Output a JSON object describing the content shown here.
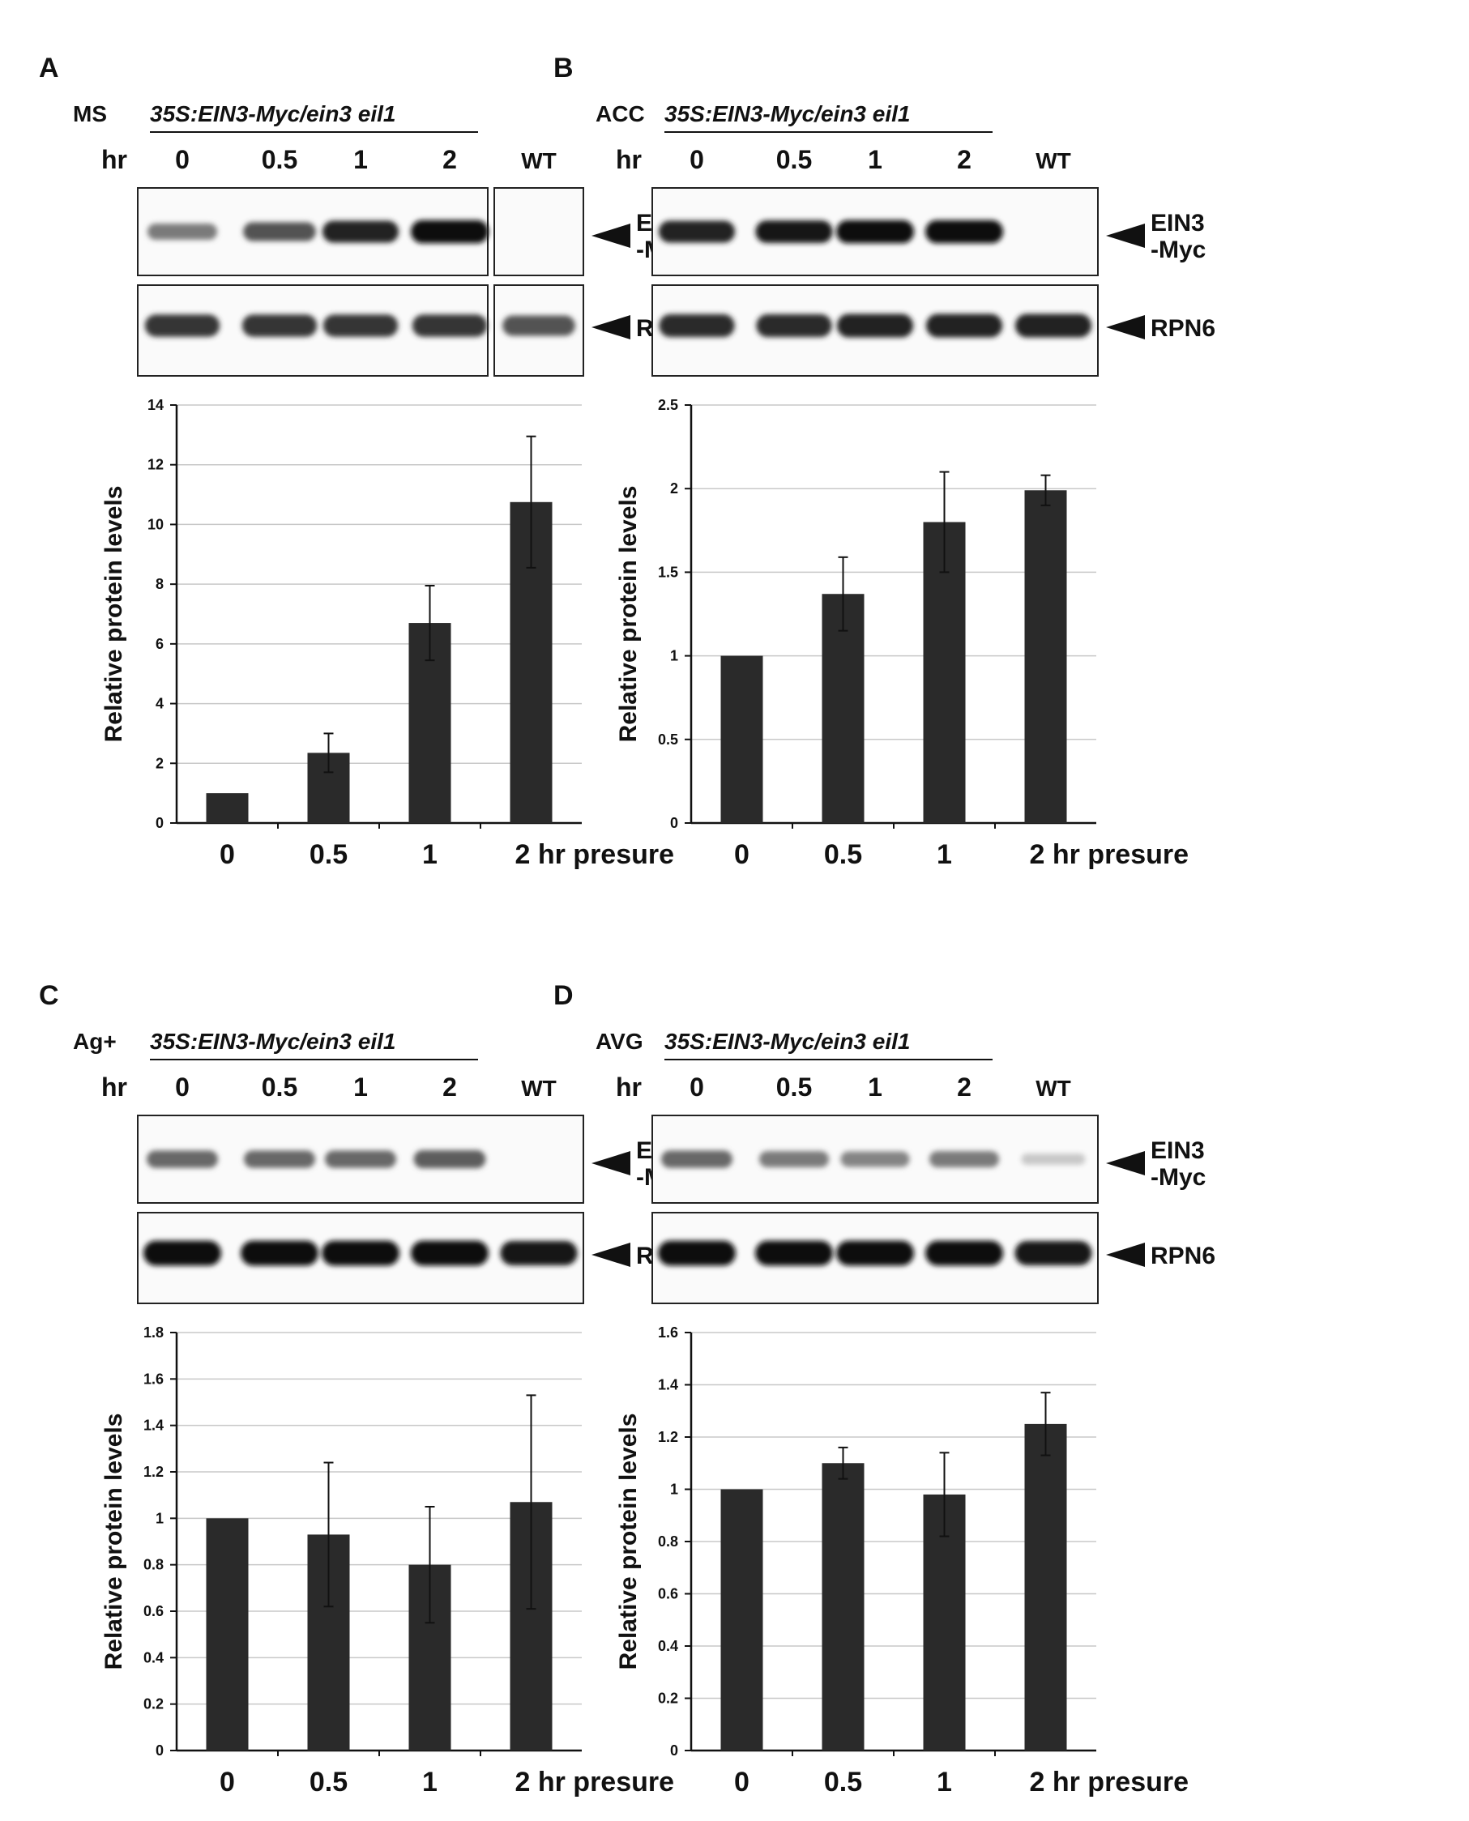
{
  "blot_header": {
    "genotype": "35S:EIN3-Myc/ein3 eil1",
    "time_label": "hr",
    "lanes": [
      "0",
      "0.5",
      "1",
      "2",
      "WT"
    ],
    "band_labels": {
      "ein3_line1": "EIN3",
      "ein3_line2": "-Myc",
      "rpn6": "RPN6"
    }
  },
  "panels": [
    {
      "letter": "A",
      "treatment": "MS",
      "ein3_levels": [
        0.45,
        0.65,
        0.9,
        1.0,
        0.0
      ],
      "rpn6_levels": [
        0.8,
        0.8,
        0.8,
        0.8,
        0.65
      ]
    },
    {
      "letter": "B",
      "treatment": "ACC",
      "ein3_levels": [
        0.9,
        0.95,
        1.0,
        1.0,
        0.0
      ],
      "rpn6_levels": [
        0.85,
        0.85,
        0.9,
        0.9,
        0.9
      ]
    },
    {
      "letter": "C",
      "treatment": "Ag+",
      "ein3_levels": [
        0.55,
        0.55,
        0.55,
        0.6,
        0.0
      ],
      "rpn6_levels": [
        1.0,
        1.0,
        1.0,
        1.0,
        0.95
      ]
    },
    {
      "letter": "D",
      "treatment": "AVG",
      "ein3_levels": [
        0.55,
        0.45,
        0.4,
        0.45,
        0.05
      ],
      "rpn6_levels": [
        1.0,
        1.0,
        1.0,
        1.0,
        0.95
      ]
    }
  ],
  "chart_data": [
    {
      "type": "bar",
      "categories": [
        "0",
        "0.5",
        "1",
        "2 hr presure"
      ],
      "values": [
        1.0,
        2.35,
        6.7,
        10.75
      ],
      "errors": [
        0.0,
        0.65,
        1.25,
        2.2
      ],
      "ylabel": "Relative protein levels",
      "ylim": [
        0,
        14
      ],
      "yticks": [
        "0",
        "2",
        "4",
        "6",
        "8",
        "10",
        "12",
        "14"
      ],
      "grid": true,
      "bar_color": "#2a2a2a"
    },
    {
      "type": "bar",
      "categories": [
        "0",
        "0.5",
        "1",
        "2 hr presure"
      ],
      "values": [
        1.0,
        1.37,
        1.8,
        1.99
      ],
      "errors": [
        0.0,
        0.22,
        0.3,
        0.09
      ],
      "ylabel": "Relative protein levels",
      "ylim": [
        0,
        2.5
      ],
      "yticks": [
        "0",
        "0.5",
        "1",
        "1.5",
        "2",
        "2.5"
      ],
      "grid": true,
      "bar_color": "#2a2a2a"
    },
    {
      "type": "bar",
      "categories": [
        "0",
        "0.5",
        "1",
        "2 hr presure"
      ],
      "values": [
        1.0,
        0.93,
        0.8,
        1.07
      ],
      "errors": [
        0.0,
        0.31,
        0.25,
        0.46
      ],
      "ylabel": "Relative protein levels",
      "ylim": [
        0,
        1.8
      ],
      "yticks": [
        "0",
        "0.2",
        "0.4",
        "0.6",
        "0.8",
        "1",
        "1.2",
        "1.4",
        "1.6",
        "1.8"
      ],
      "grid": true,
      "bar_color": "#2a2a2a"
    },
    {
      "type": "bar",
      "categories": [
        "0",
        "0.5",
        "1",
        "2 hr presure"
      ],
      "values": [
        1.0,
        1.1,
        0.98,
        1.25
      ],
      "errors": [
        0.0,
        0.06,
        0.16,
        0.12
      ],
      "ylabel": "Relative protein levels",
      "ylim": [
        0,
        1.6
      ],
      "yticks": [
        "0",
        "0.2",
        "0.4",
        "0.6",
        "0.8",
        "1",
        "1.2",
        "1.4",
        "1.6"
      ],
      "grid": true,
      "bar_color": "#2a2a2a"
    }
  ]
}
